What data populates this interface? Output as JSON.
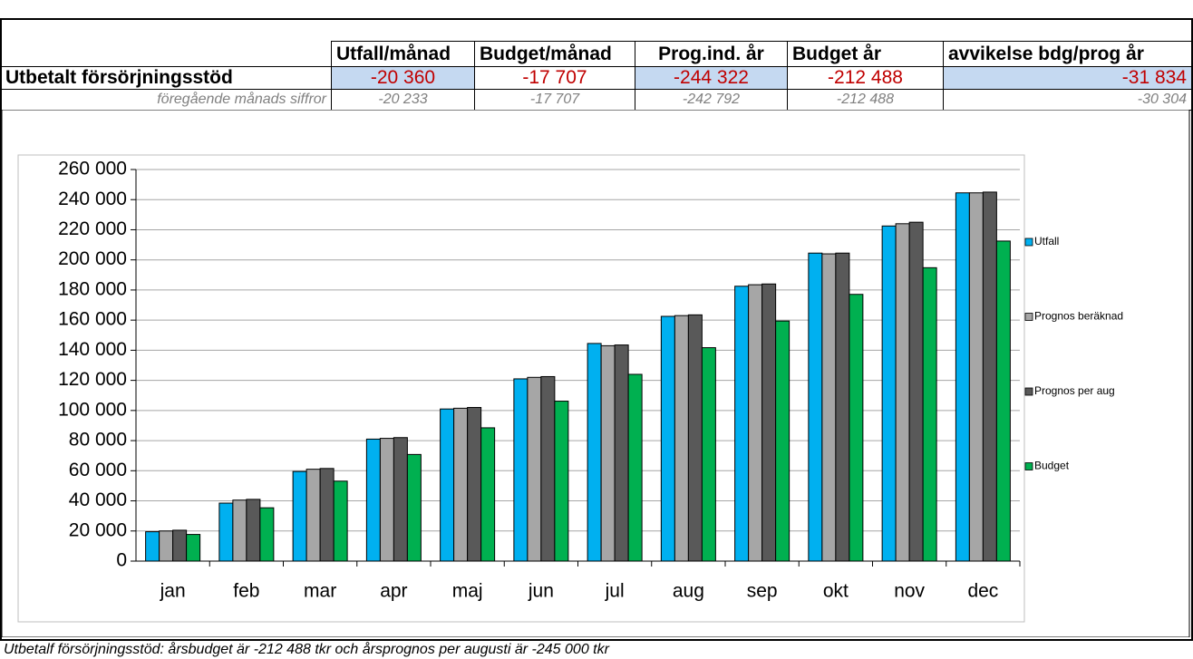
{
  "table": {
    "headers": [
      "Utfall/månad",
      "Budget/månad",
      "Prog.ind. år",
      "Budget år",
      "avvikelse bdg/prog år"
    ],
    "rows": [
      {
        "label": "Utbetalt försörjningsstöd",
        "values": [
          "-20 360",
          "-17 707",
          "-244 322",
          "-212 488",
          "-31 834"
        ]
      },
      {
        "label": "föregående månads siffror",
        "values": [
          "-20 233",
          "-17 707",
          "-242 792",
          "-212 488",
          "-30 304"
        ]
      }
    ]
  },
  "chart_data": {
    "type": "bar",
    "categories": [
      "jan",
      "feb",
      "mar",
      "apr",
      "maj",
      "jun",
      "jul",
      "aug",
      "sep",
      "okt",
      "nov",
      "dec"
    ],
    "series": [
      {
        "name": "Utfall",
        "color": "#00b0f0",
        "values": [
          19500,
          38500,
          59500,
          81000,
          101000,
          121000,
          144500,
          162500,
          182500,
          204500,
          222500,
          244500
        ]
      },
      {
        "name": "Prognos beräknad",
        "color": "#a6a6a6",
        "values": [
          20000,
          40500,
          61000,
          81500,
          101500,
          122000,
          143000,
          163000,
          183500,
          204000,
          224000,
          244500
        ]
      },
      {
        "name": "Prognos per aug",
        "color": "#595959",
        "values": [
          20500,
          41000,
          61500,
          82000,
          102000,
          122500,
          143500,
          163500,
          184000,
          204500,
          225000,
          245000
        ]
      },
      {
        "name": "Budget",
        "color": "#00b050",
        "values": [
          17700,
          35400,
          53100,
          70800,
          88500,
          106200,
          124000,
          141700,
          159400,
          177100,
          194800,
          212500
        ]
      }
    ],
    "ylim": [
      0,
      260000
    ],
    "yticks": [
      {
        "value": 0,
        "label": "0"
      },
      {
        "value": 20000,
        "label": "20 000"
      },
      {
        "value": 40000,
        "label": "40 000"
      },
      {
        "value": 60000,
        "label": "60 000"
      },
      {
        "value": 80000,
        "label": "80 000"
      },
      {
        "value": 100000,
        "label": "100 000"
      },
      {
        "value": 120000,
        "label": "120 000"
      },
      {
        "value": 140000,
        "label": "140 000"
      },
      {
        "value": 160000,
        "label": "160 000"
      },
      {
        "value": 180000,
        "label": "180 000"
      },
      {
        "value": 200000,
        "label": "200 000"
      },
      {
        "value": 220000,
        "label": "220 000"
      },
      {
        "value": 240000,
        "label": "240 000"
      },
      {
        "value": 260000,
        "label": "260 000"
      }
    ],
    "grid": true,
    "legend": "right"
  },
  "footnote": "Utbetalf försörjningsstöd: årsbudget är -212 488 tkr och årsprognos per augusti är -245 000 tkr"
}
